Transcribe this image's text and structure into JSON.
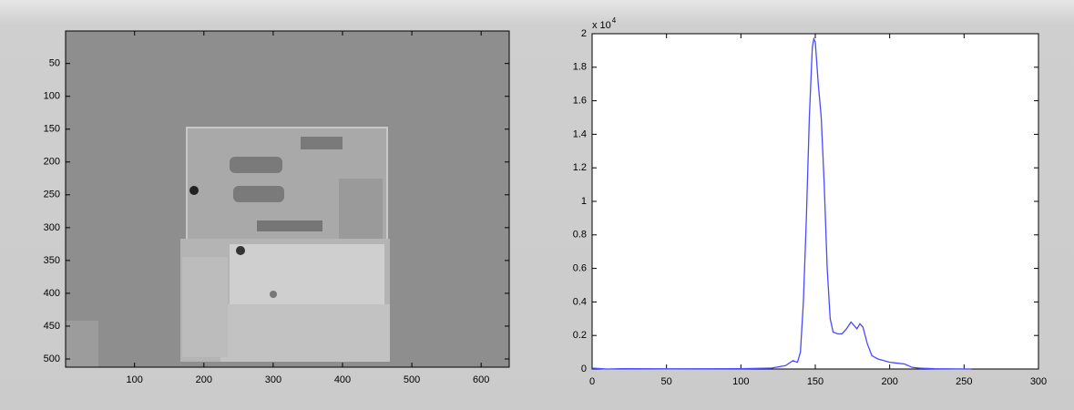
{
  "chart_data": [
    {
      "type": "image",
      "xlim": [
        0.5,
        640.5
      ],
      "ylim": [
        0.5,
        512.5
      ],
      "y_reversed": true,
      "xticks": [
        100,
        200,
        300,
        400,
        500,
        600
      ],
      "yticks": [
        50,
        100,
        150,
        200,
        250,
        300,
        350,
        400,
        450,
        500
      ]
    },
    {
      "type": "line",
      "xlim": [
        0,
        300
      ],
      "ylim": [
        0,
        2
      ],
      "xticks": [
        0,
        50,
        100,
        150,
        200,
        250,
        300
      ],
      "yticks": [
        0,
        0.2,
        0.4,
        0.6,
        0.8,
        1,
        1.2,
        1.4,
        1.6,
        1.8,
        2
      ],
      "multiplier_base": "x 10",
      "multiplier_exponent": "4",
      "x": [
        0,
        10,
        20,
        50,
        100,
        120,
        130,
        135,
        138,
        140,
        142,
        144,
        146,
        148,
        149,
        150,
        152,
        154,
        156,
        158,
        160,
        162,
        165,
        168,
        171,
        174,
        176,
        178,
        180,
        182,
        185,
        188,
        192,
        196,
        200,
        205,
        210,
        215,
        220,
        230,
        255
      ],
      "series": [
        {
          "color": "#4a4aff",
          "values": [
            0.005,
            0,
            0.002,
            0.001,
            0.002,
            0.005,
            0.02,
            0.05,
            0.04,
            0.1,
            0.4,
            0.9,
            1.5,
            1.92,
            1.97,
            1.95,
            1.7,
            1.5,
            1.1,
            0.6,
            0.3,
            0.22,
            0.21,
            0.21,
            0.24,
            0.28,
            0.26,
            0.24,
            0.27,
            0.25,
            0.15,
            0.08,
            0.06,
            0.05,
            0.04,
            0.035,
            0.03,
            0.01,
            0.005,
            0.002,
            0
          ]
        }
      ]
    }
  ]
}
